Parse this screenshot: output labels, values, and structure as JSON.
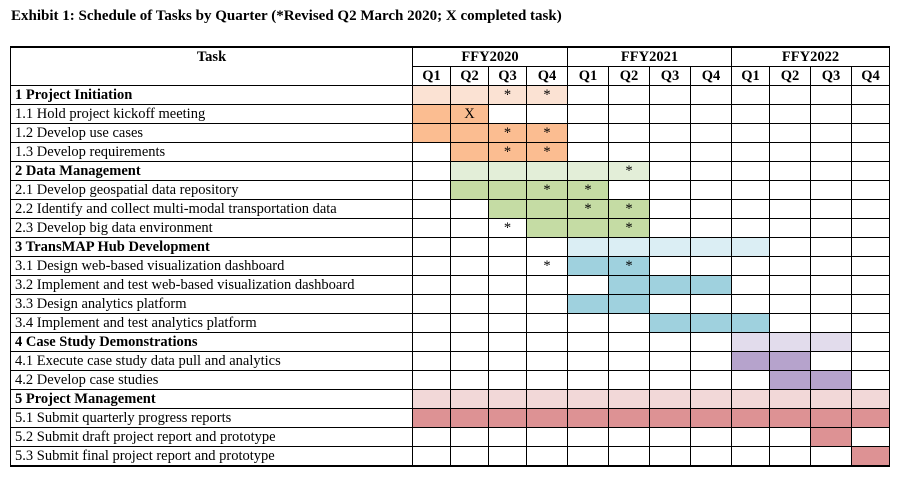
{
  "title": "Exhibit 1: Schedule of Tasks by Quarter (*Revised Q2 March 2020; X completed task)",
  "header": {
    "task_label": "Task",
    "years": [
      "FFY2020",
      "FFY2021",
      "FFY2022"
    ],
    "quarters": [
      "Q1",
      "Q2",
      "Q3",
      "Q4"
    ]
  },
  "colors": {
    "orange": "#fbbd91",
    "orange_light": "#fbe2d3",
    "green": "#c5dca4",
    "green_light": "#e3eed8",
    "blue": "#9fd1de",
    "blue_light": "#dbeef4",
    "purple": "#b6a3cc",
    "purple_light": "#e2dcec",
    "red": "#dd9294",
    "red_light": "#f2d8d8"
  },
  "rows": [
    {
      "task": "1 Project Initiation",
      "phase": true,
      "color": "orange_light",
      "fill": [
        1,
        1,
        1,
        1,
        0,
        0,
        0,
        0,
        0,
        0,
        0,
        0
      ],
      "marks": {
        "2": "*",
        "3": "*"
      }
    },
    {
      "task": "1.1 Hold project kickoff meeting",
      "phase": false,
      "color": "orange",
      "fill": [
        1,
        1,
        0,
        0,
        0,
        0,
        0,
        0,
        0,
        0,
        0,
        0
      ],
      "marks": {
        "1": "X"
      }
    },
    {
      "task": "1.2 Develop use cases",
      "phase": false,
      "color": "orange",
      "fill": [
        1,
        1,
        1,
        1,
        0,
        0,
        0,
        0,
        0,
        0,
        0,
        0
      ],
      "marks": {
        "2": "*",
        "3": "*"
      }
    },
    {
      "task": "1.3 Develop requirements",
      "phase": false,
      "color": "orange",
      "fill": [
        0,
        1,
        1,
        1,
        0,
        0,
        0,
        0,
        0,
        0,
        0,
        0
      ],
      "marks": {
        "2": "*",
        "3": "*"
      }
    },
    {
      "task": "2 Data Management",
      "phase": true,
      "color": "green_light",
      "fill": [
        0,
        1,
        1,
        1,
        1,
        1,
        0,
        0,
        0,
        0,
        0,
        0
      ],
      "marks": {
        "5": "*"
      }
    },
    {
      "task": "2.1 Develop geospatial data repository",
      "phase": false,
      "color": "green",
      "fill": [
        0,
        1,
        1,
        1,
        1,
        0,
        0,
        0,
        0,
        0,
        0,
        0
      ],
      "marks": {
        "3": "*",
        "4": "*"
      }
    },
    {
      "task": "2.2 Identify and collect multi-modal transportation data",
      "phase": false,
      "color": "green",
      "fill": [
        0,
        0,
        1,
        1,
        1,
        1,
        0,
        0,
        0,
        0,
        0,
        0
      ],
      "marks": {
        "4": "*",
        "5": "*"
      }
    },
    {
      "task": "2.3 Develop big data environment",
      "phase": false,
      "color": "green",
      "fill": [
        0,
        0,
        0,
        1,
        1,
        1,
        0,
        0,
        0,
        0,
        0,
        0
      ],
      "marks": {
        "2": "*",
        "5": "*"
      }
    },
    {
      "task": "3 TransMAP Hub Development",
      "phase": true,
      "color": "blue_light",
      "fill": [
        0,
        0,
        0,
        0,
        1,
        1,
        1,
        1,
        1,
        0,
        0,
        0
      ],
      "marks": {}
    },
    {
      "task": "3.1 Design web-based visualization dashboard",
      "phase": false,
      "color": "blue",
      "fill": [
        0,
        0,
        0,
        0,
        1,
        1,
        0,
        0,
        0,
        0,
        0,
        0
      ],
      "marks": {
        "3": "*",
        "5": "*"
      }
    },
    {
      "task": "3.2 Implement and test web-based visualization dashboard",
      "phase": false,
      "color": "blue",
      "fill": [
        0,
        0,
        0,
        0,
        0,
        1,
        1,
        1,
        0,
        0,
        0,
        0
      ],
      "marks": {}
    },
    {
      "task": "3.3 Design analytics platform",
      "phase": false,
      "color": "blue",
      "fill": [
        0,
        0,
        0,
        0,
        1,
        1,
        0,
        0,
        0,
        0,
        0,
        0
      ],
      "marks": {}
    },
    {
      "task": "3.4 Implement and test analytics platform",
      "phase": false,
      "color": "blue",
      "fill": [
        0,
        0,
        0,
        0,
        0,
        0,
        1,
        1,
        1,
        0,
        0,
        0
      ],
      "marks": {}
    },
    {
      "task": "4 Case Study Demonstrations",
      "phase": true,
      "color": "purple_light",
      "fill": [
        0,
        0,
        0,
        0,
        0,
        0,
        0,
        0,
        1,
        1,
        1,
        0
      ],
      "marks": {}
    },
    {
      "task": "4.1 Execute case study data pull and analytics",
      "phase": false,
      "color": "purple",
      "fill": [
        0,
        0,
        0,
        0,
        0,
        0,
        0,
        0,
        1,
        1,
        0,
        0
      ],
      "marks": {}
    },
    {
      "task": "4.2 Develop case studies",
      "phase": false,
      "color": "purple",
      "fill": [
        0,
        0,
        0,
        0,
        0,
        0,
        0,
        0,
        0,
        1,
        1,
        0
      ],
      "marks": {}
    },
    {
      "task": "5 Project Management",
      "phase": true,
      "color": "red_light",
      "fill": [
        1,
        1,
        1,
        1,
        1,
        1,
        1,
        1,
        1,
        1,
        1,
        1
      ],
      "marks": {}
    },
    {
      "task": "5.1 Submit quarterly progress reports",
      "phase": false,
      "color": "red",
      "fill": [
        1,
        1,
        1,
        1,
        1,
        1,
        1,
        1,
        1,
        1,
        1,
        1
      ],
      "marks": {}
    },
    {
      "task": "5.2 Submit draft project report and prototype",
      "phase": false,
      "color": "red",
      "fill": [
        0,
        0,
        0,
        0,
        0,
        0,
        0,
        0,
        0,
        0,
        1,
        0
      ],
      "marks": {}
    },
    {
      "task": "5.3 Submit final project report and prototype",
      "phase": false,
      "color": "red",
      "fill": [
        0,
        0,
        0,
        0,
        0,
        0,
        0,
        0,
        0,
        0,
        0,
        1
      ],
      "marks": {}
    }
  ]
}
